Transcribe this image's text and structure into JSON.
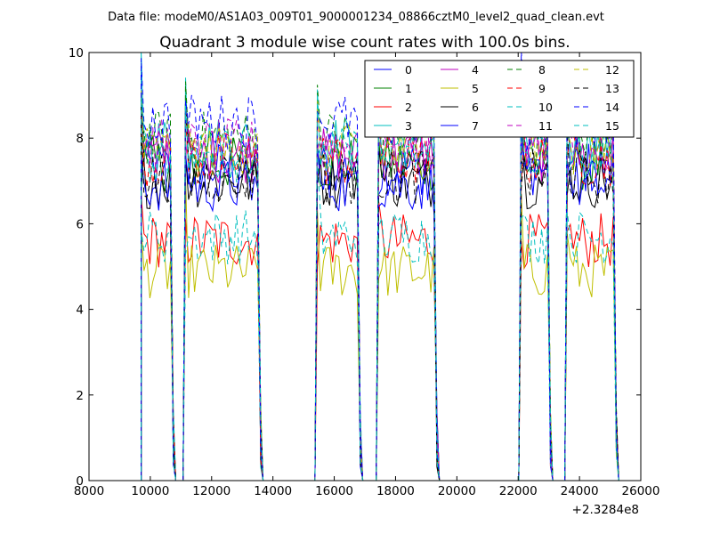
{
  "chart_data": {
    "type": "line",
    "suptitle": "Data file: modeM0/AS1A03_009T01_9000001234_08866cztM0_level2_quad_clean.evt",
    "title": "Quadrant 3 module wise count rates with 100.0s bins.",
    "xlabel": "",
    "ylabel": "",
    "xlim": [
      8000,
      26000
    ],
    "ylim": [
      0,
      10
    ],
    "x_offset_label": "+2.3284e8",
    "xticks": [
      8000,
      10000,
      12000,
      14000,
      16000,
      18000,
      20000,
      22000,
      24000,
      26000
    ],
    "xtick_labels": [
      "8000",
      "10000",
      "12000",
      "14000",
      "16000",
      "18000",
      "20000",
      "22000",
      "24000",
      "26000"
    ],
    "yticks": [
      0,
      2,
      4,
      6,
      8,
      10
    ],
    "ytick_labels": [
      "0",
      "2",
      "4",
      "6",
      "8",
      "10"
    ],
    "grid": false,
    "legend_position": "top-right",
    "legend_columns": 4,
    "segments": [
      {
        "start": 9700,
        "end": 10750
      },
      {
        "start": 11150,
        "end": 13600
      },
      {
        "start": 15450,
        "end": 16850
      },
      {
        "start": 17450,
        "end": 19350
      },
      {
        "start": 22100,
        "end": 23050
      },
      {
        "start": 23600,
        "end": 25200
      }
    ],
    "series": [
      {
        "name": "0",
        "color": "#0000ff",
        "dash": "solid",
        "level": 7.3
      },
      {
        "name": "1",
        "color": "#008000",
        "dash": "solid",
        "level": 7.4
      },
      {
        "name": "2",
        "color": "#ff0000",
        "dash": "solid",
        "level": 5.6
      },
      {
        "name": "3",
        "color": "#00bfbf",
        "dash": "solid",
        "level": 7.9
      },
      {
        "name": "4",
        "color": "#bf00bf",
        "dash": "solid",
        "level": 7.6
      },
      {
        "name": "5",
        "color": "#bfbf00",
        "dash": "solid",
        "level": 4.9
      },
      {
        "name": "6",
        "color": "#000000",
        "dash": "solid",
        "level": 7.0
      },
      {
        "name": "7",
        "color": "#0000ff",
        "dash": "solid",
        "level": 6.9
      },
      {
        "name": "8",
        "color": "#008000",
        "dash": "dashed",
        "level": 8.0
      },
      {
        "name": "9",
        "color": "#ff0000",
        "dash": "dashed",
        "level": 7.5
      },
      {
        "name": "10",
        "color": "#00bfbf",
        "dash": "dashed",
        "level": 5.7
      },
      {
        "name": "11",
        "color": "#bf00bf",
        "dash": "dashed",
        "level": 7.8
      },
      {
        "name": "12",
        "color": "#bfbf00",
        "dash": "dashed",
        "level": 7.7
      },
      {
        "name": "13",
        "color": "#000000",
        "dash": "dashed",
        "level": 7.1
      },
      {
        "name": "14",
        "color": "#0000ff",
        "dash": "dashed",
        "level": 8.4
      },
      {
        "name": "15",
        "color": "#00bfbf",
        "dash": "dashed",
        "level": 7.6
      }
    ]
  }
}
